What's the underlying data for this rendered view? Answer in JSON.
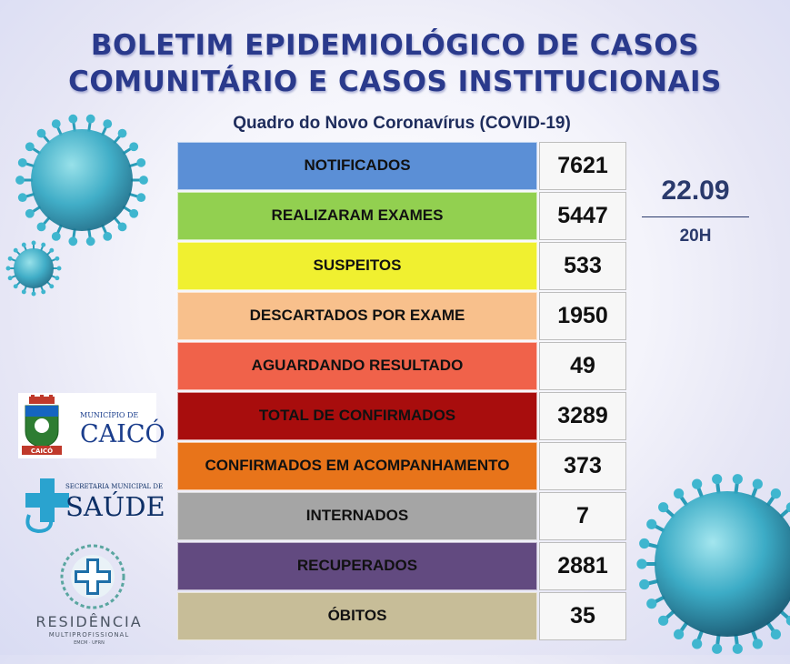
{
  "header": {
    "title_line1": "BOLETIM EPIDEMIOLÓGICO DE CASOS",
    "title_line2": "COMUNITÁRIO E CASOS INSTITUCIONAIS",
    "subtitle": "Quadro do Novo Coronavírus (COVID-19)"
  },
  "rows": [
    {
      "label": "NOTIFICADOS",
      "value": "7621",
      "color": "#5b8fd6"
    },
    {
      "label": "REALIZARAM EXAMES",
      "value": "5447",
      "color": "#92d050"
    },
    {
      "label": "SUSPEITOS",
      "value": "533",
      "color": "#f0f030"
    },
    {
      "label": "DESCARTADOS POR EXAME",
      "value": "1950",
      "color": "#f8c08c"
    },
    {
      "label": "AGUARDANDO RESULTADO",
      "value": "49",
      "color": "#f0624a"
    },
    {
      "label": "TOTAL DE CONFIRMADOS",
      "value": "3289",
      "color": "#a80d0d"
    },
    {
      "label": "CONFIRMADOS EM ACOMPANHAMENTO",
      "value": "373",
      "color": "#e8741a"
    },
    {
      "label": "INTERNADOS",
      "value": "7",
      "color": "#a5a5a5"
    },
    {
      "label": "RECUPERADOS",
      "value": "2881",
      "color": "#624a80"
    },
    {
      "label": "ÓBITOS",
      "value": "35",
      "color": "#c7bd98"
    }
  ],
  "date": {
    "day": "22.09",
    "hour": "20H"
  },
  "logos": {
    "caico_small": "MUNICÍPIO DE",
    "caico_big": "CAICÓ",
    "caico_banner": "CAICÓ",
    "saude_small": "SECRETARIA MUNICIPAL DE",
    "saude_big": "SAÚDE",
    "residencia_big": "RESIDÊNCIA",
    "residencia_small": "MULTIPROFISSIONAL",
    "residencia_tiny": "EMCM · UFRN"
  },
  "icons": {
    "virus": "coronavirus-icon",
    "caico_logo": "coat-of-arms-icon",
    "saude_logo": "medical-cross-icon",
    "residencia_logo": "health-emblem-icon"
  }
}
